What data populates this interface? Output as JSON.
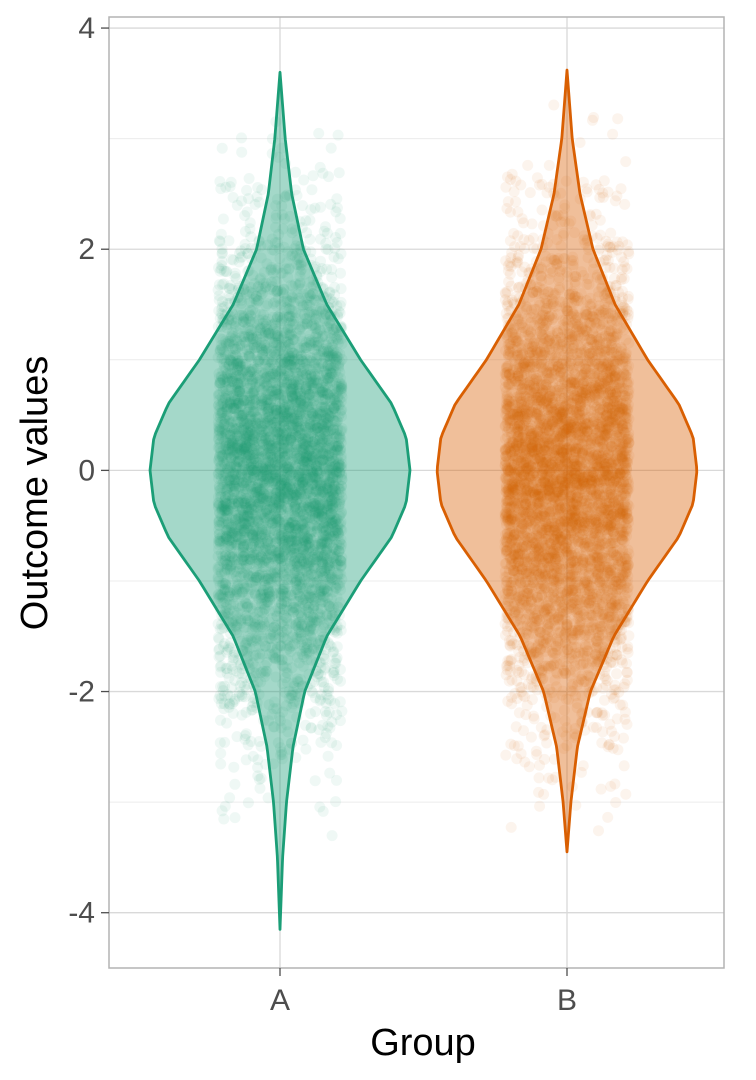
{
  "chart_data": {
    "type": "violin",
    "title": "",
    "xlabel": "Group",
    "ylabel": "Outcome values",
    "ylim": [
      -4.5,
      4.1
    ],
    "yticks": [
      -4,
      -2,
      0,
      2,
      4
    ],
    "ytick_labels": [
      "-4",
      "-2",
      "0",
      "2",
      "4"
    ],
    "grid": true,
    "legend": "none",
    "categories": [
      "A",
      "B"
    ],
    "series": [
      {
        "name": "A",
        "color": "#1b9e77",
        "fill_opacity": 0.4,
        "min": -4.15,
        "max": 3.6,
        "center": 0.0,
        "sd": 1.0,
        "points": 5000,
        "profile": [
          [
            -4.15,
            0.0
          ],
          [
            -3.5,
            0.02
          ],
          [
            -3.0,
            0.05
          ],
          [
            -2.5,
            0.1
          ],
          [
            -2.0,
            0.19
          ],
          [
            -1.5,
            0.36
          ],
          [
            -1.0,
            0.62
          ],
          [
            -0.6,
            0.86
          ],
          [
            -0.3,
            0.97
          ],
          [
            0.0,
            1.0
          ],
          [
            0.3,
            0.97
          ],
          [
            0.6,
            0.86
          ],
          [
            1.0,
            0.62
          ],
          [
            1.5,
            0.36
          ],
          [
            2.0,
            0.18
          ],
          [
            2.5,
            0.09
          ],
          [
            3.0,
            0.04
          ],
          [
            3.6,
            0.0
          ]
        ]
      },
      {
        "name": "B",
        "color": "#d95f02",
        "fill_opacity": 0.4,
        "min": -3.45,
        "max": 3.62,
        "center": 0.0,
        "sd": 1.0,
        "points": 5000,
        "profile": [
          [
            -3.45,
            0.0
          ],
          [
            -3.0,
            0.03
          ],
          [
            -2.5,
            0.08
          ],
          [
            -2.0,
            0.18
          ],
          [
            -1.5,
            0.36
          ],
          [
            -1.0,
            0.62
          ],
          [
            -0.6,
            0.86
          ],
          [
            -0.3,
            0.97
          ],
          [
            0.0,
            1.0
          ],
          [
            0.3,
            0.97
          ],
          [
            0.6,
            0.86
          ],
          [
            1.0,
            0.62
          ],
          [
            1.5,
            0.37
          ],
          [
            2.0,
            0.2
          ],
          [
            2.5,
            0.1
          ],
          [
            3.0,
            0.04
          ],
          [
            3.62,
            0.0
          ]
        ]
      }
    ]
  }
}
